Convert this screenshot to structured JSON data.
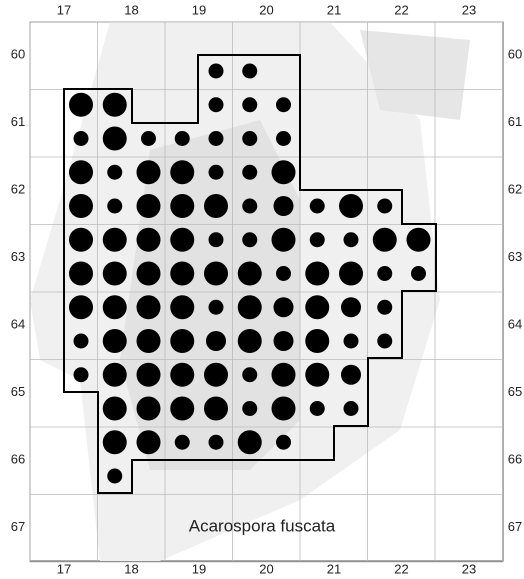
{
  "map": {
    "title": "Acarospora fuscata",
    "x_labels": [
      "17",
      "18",
      "19",
      "20",
      "21",
      "22",
      "23"
    ],
    "y_labels": [
      "60",
      "61",
      "62",
      "63",
      "64",
      "65",
      "66",
      "67"
    ]
  }
}
